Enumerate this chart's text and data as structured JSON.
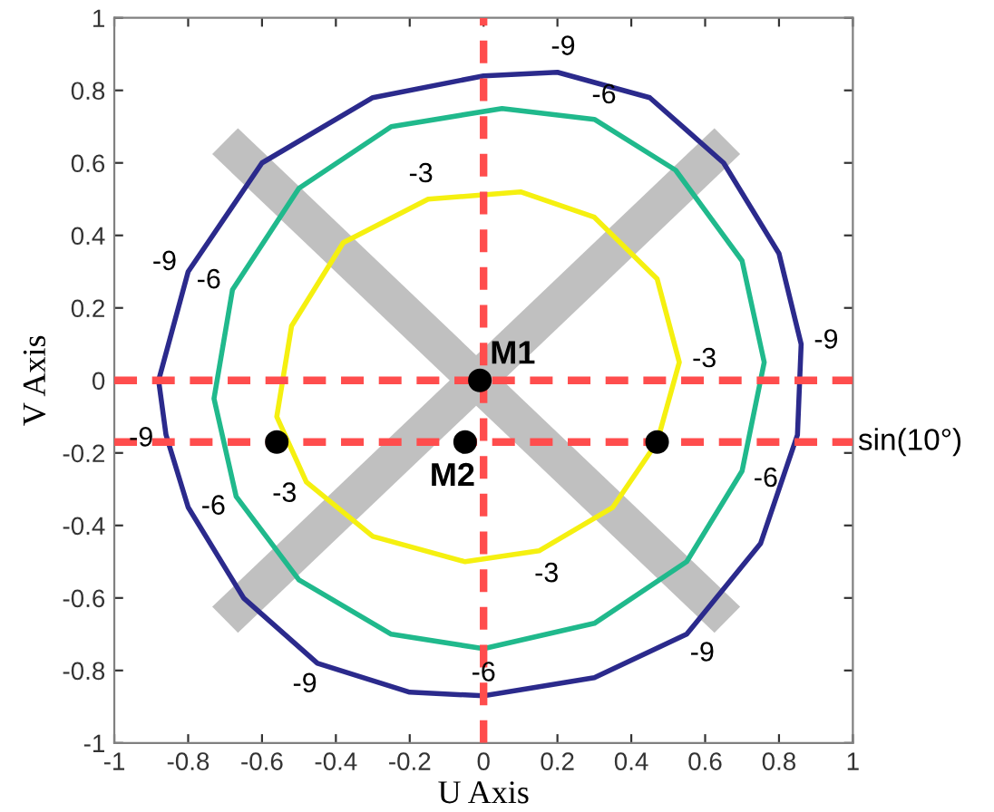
{
  "chart_data": {
    "type": "scatter",
    "xlabel": "U Axis",
    "ylabel": "V Axis",
    "xlim": [
      -1,
      1
    ],
    "ylim": [
      -1,
      1
    ],
    "xticks": [
      -1,
      -0.8,
      -0.6,
      -0.4,
      -0.2,
      0,
      0.2,
      0.4,
      0.6,
      0.8,
      1
    ],
    "yticks": [
      -1,
      -0.8,
      -0.6,
      -0.4,
      -0.2,
      0,
      0.2,
      0.4,
      0.6,
      0.8,
      1
    ],
    "grid": false,
    "legend": false,
    "series": [
      {
        "color": "#000000",
        "marker": "circle",
        "x": [
          -0.01,
          -0.05,
          -0.56,
          0.47
        ],
        "values": [
          0,
          -0.17,
          -0.17,
          -0.17
        ]
      }
    ],
    "ref_lines": [
      {
        "axis": "x",
        "value": 0,
        "color": "#ff4d4d",
        "line_style": "dashed"
      },
      {
        "axis": "y",
        "value": 0,
        "color": "#ff4d4d",
        "line_style": "dashed"
      },
      {
        "axis": "y",
        "value": -0.17,
        "label": "sin(10°)",
        "color": "#ff4d4d",
        "line_style": "dashed"
      }
    ],
    "annotations": [
      {
        "text": "M1",
        "x": -0.01,
        "y": 0
      },
      {
        "text": "M2",
        "x": -0.05,
        "y": -0.17
      },
      "-9",
      "-9",
      "-9",
      "-9",
      "-9",
      "-9",
      "-6",
      "-6",
      "-6",
      "-6",
      "-6",
      "-3",
      "-3",
      "-3",
      "-3"
    ]
  }
}
